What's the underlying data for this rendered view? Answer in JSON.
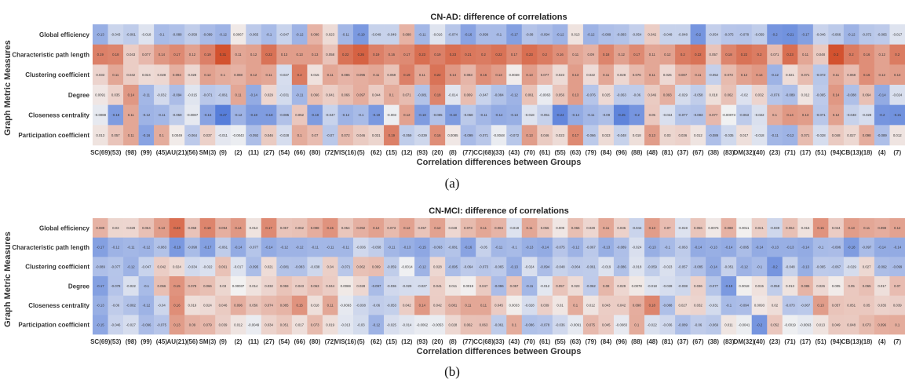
{
  "panels": [
    {
      "label": "(a)"
    },
    {
      "label": "(b)"
    }
  ],
  "chart_data": [
    {
      "type": "heatmap",
      "title": "CN-AD: difference of correlations",
      "xlabel": "Correlation differences between Groups",
      "ylabel": "Graph Metric Measures",
      "rows": [
        "Global efficiency",
        "Characteristic path length",
        "Clustering coefficient",
        "Degree",
        "Closeness centrality",
        "Participation coefficient"
      ],
      "columns": [
        "SC(69)",
        "(53)",
        "(98)",
        "(99)",
        "(45)",
        "AU(21)",
        "(56)",
        "SM(3)",
        "(9)",
        "(2)",
        "(11)",
        "(27)",
        "(54)",
        "(66)",
        "(80)",
        "(72)",
        "VIS(16)",
        "(5)",
        "(62)",
        "(15)",
        "(12)",
        "(93)",
        "(20)",
        "(8)",
        "(77)",
        "CC(68)",
        "(33)",
        "(43)",
        "(70)",
        "(61)",
        "(55)",
        "(63)",
        "(79)",
        "(84)",
        "(96)",
        "(88)",
        "(48)",
        "(81)",
        "(37)",
        "(67)",
        "(38)",
        "(83)",
        "DM(32)",
        "(40)",
        "(23)",
        "(71)",
        "(17)",
        "(51)",
        "(94)",
        "CB(13)",
        "(18)",
        "(4)",
        "(7)"
      ],
      "values": [
        [
          -0.13,
          -0.043,
          -0.061,
          -0.018,
          -0.1,
          -0.088,
          -0.058,
          -0.099,
          -0.12,
          0.0067,
          -0.065,
          -0.1,
          -0.047,
          -0.12,
          0.086,
          0.023,
          -0.11,
          -0.19,
          -0.049,
          -0.049,
          0.088,
          -0.11,
          -0.016,
          -0.074,
          -0.16,
          -0.099,
          -0.1,
          -0.17,
          -0.08,
          -0.094,
          -0.12,
          0.013,
          -0.12,
          -0.089,
          -0.083,
          -0.054,
          0.042,
          -0.048,
          -0.048,
          -0.2,
          -0.054,
          -0.075,
          -0.078,
          -0.059,
          -0.2,
          -0.21,
          -0.17,
          -0.046,
          -0.066,
          -0.12,
          -0.072,
          -0.065,
          -0.017
        ],
        [
          0.19,
          0.18,
          0.043,
          0.077,
          0.14,
          0.17,
          0.12,
          0.19,
          0.31,
          0.11,
          0.12,
          0.22,
          0.13,
          0.13,
          0.13,
          0.058,
          0.22,
          0.26,
          0.19,
          0.16,
          0.17,
          0.23,
          0.19,
          0.23,
          0.21,
          0.2,
          0.22,
          0.17,
          0.23,
          0.2,
          0.16,
          0.11,
          0.09,
          0.18,
          0.12,
          0.17,
          0.11,
          0.12,
          0.2,
          0.22,
          0.057,
          0.18,
          0.22,
          0.2,
          0.071,
          0.23,
          0.11,
          0.048,
          0.3,
          0.2,
          0.16,
          0.12,
          0.2
        ],
        [
          0.033,
          0.11,
          0.042,
          0.024,
          0.028,
          0.094,
          0.028,
          0.12,
          0.1,
          0.088,
          0.12,
          0.11,
          -0.027,
          0.2,
          0.015,
          0.11,
          0.086,
          0.096,
          0.11,
          0.059,
          0.19,
          0.11,
          0.22,
          0.14,
          0.083,
          0.16,
          0.13,
          0.0038,
          0.13,
          0.077,
          0.023,
          0.13,
          0.022,
          0.11,
          0.028,
          0.076,
          0.11,
          0.026,
          0.087,
          0.11,
          -0.052,
          0.073,
          0.12,
          0.14,
          -0.12,
          0.021,
          0.071,
          -0.072,
          0.11,
          0.068,
          0.16,
          0.12,
          0.13
        ],
        [
          0.0091,
          0.035,
          0.14,
          -0.11,
          -0.032,
          -0.094,
          -0.015,
          -0.071,
          -0.061,
          0.11,
          -0.14,
          0.029,
          -0.031,
          -0.11,
          0.066,
          0.041,
          0.066,
          0.097,
          0.044,
          0.1,
          0.071,
          -0.081,
          0.18,
          -0.014,
          0.069,
          -0.047,
          -0.084,
          -0.12,
          0.061,
          -0.0063,
          0.056,
          0.13,
          -0.076,
          0.025,
          -0.063,
          -0.06,
          0.046,
          0.093,
          -0.029,
          -0.058,
          0.018,
          0.062,
          -0.02,
          0.032,
          -0.076,
          -0.089,
          0.012,
          -0.065,
          0.14,
          -0.088,
          0.064,
          -0.14,
          -0.024
        ],
        [
          -0.0088,
          -0.18,
          0.11,
          -0.12,
          -0.11,
          -0.059,
          -0.0087,
          -0.16,
          -0.27,
          -0.12,
          -0.18,
          -0.18,
          -0.085,
          0.052,
          -0.18,
          -0.047,
          -0.12,
          -0.1,
          -0.19,
          -0.003,
          0.12,
          -0.18,
          -0.085,
          -0.18,
          -0.068,
          -0.11,
          -0.14,
          -0.13,
          -0.018,
          -0.051,
          -0.24,
          -0.14,
          -0.11,
          -0.09,
          -0.25,
          -0.2,
          0.05,
          -0.024,
          -0.077,
          -0.083,
          0.077,
          -0.00073,
          -0.063,
          -0.022,
          0.1,
          0.14,
          0.13,
          -0.071,
          0.12,
          -0.048,
          -0.028,
          -0.2,
          -0.21
        ],
        [
          0.013,
          0.057,
          0.11,
          -0.16,
          0.1,
          0.0049,
          -0.064,
          0.037,
          -0.011,
          -0.0043,
          -0.092,
          0.046,
          -0.028,
          0.1,
          0.07,
          -0.07,
          0.072,
          0.046,
          0.031,
          0.19,
          -0.059,
          -0.039,
          0.16,
          0.0085,
          -0.099,
          -0.071,
          -0.0048,
          -0.072,
          0.13,
          0.046,
          0.023,
          0.17,
          -0.066,
          0.023,
          -0.048,
          0.018,
          0.13,
          0.03,
          0.036,
          0.012,
          -0.089,
          -0.035,
          0.017,
          -0.018,
          -0.11,
          -0.12,
          0.071,
          -0.028,
          0.048,
          0.027,
          0.098,
          -0.089,
          0.012
        ]
      ],
      "color_low": "#4a74d8",
      "color_mid": "#f2f2f2",
      "color_high": "#d3522f",
      "vmin": -0.3,
      "vmax": 0.3
    },
    {
      "type": "heatmap",
      "title": "CN-MCI: difference of correlations",
      "xlabel": "Correlation differences between Groups",
      "ylabel": "Graph Metric Measures",
      "rows": [
        "Global efficiency",
        "Characteristic path length",
        "Clustering coefficient",
        "Degree",
        "Closeness centrality",
        "Participation coefficient"
      ],
      "columns": [
        "SC(69)",
        "(53)",
        "(98)",
        "(99)",
        "(45)",
        "AU(21)",
        "(56)",
        "SM(3)",
        "(9)",
        "(2)",
        "(11)",
        "(27)",
        "(54)",
        "(66)",
        "(80)",
        "(72)",
        "VIS(16)",
        "(5)",
        "(62)",
        "(15)",
        "(12)",
        "(93)",
        "(20)",
        "(8)",
        "(77)",
        "CC(68)",
        "(33)",
        "(43)",
        "(70)",
        "(61)",
        "(55)",
        "(63)",
        "(79)",
        "(84)",
        "(96)",
        "(88)",
        "(48)",
        "(81)",
        "(37)",
        "(67)",
        "(38)",
        "(83)",
        "DM(32)",
        "(40)",
        "(23)",
        "(71)",
        "(17)",
        "(51)",
        "(94)",
        "CB(13)",
        "(18)",
        "(4)",
        "(7)"
      ],
      "values": [
        [
          0.089,
          0.03,
          0.029,
          0.064,
          0.13,
          0.23,
          0.058,
          0.18,
          0.094,
          0.14,
          0.013,
          0.17,
          0.057,
          0.062,
          0.098,
          0.15,
          0.054,
          0.092,
          0.12,
          0.073,
          0.12,
          0.057,
          0.12,
          0.028,
          0.073,
          0.11,
          0.084,
          -0.019,
          0.11,
          0.056,
          0.009,
          0.066,
          0.029,
          0.11,
          0.036,
          -0.044,
          0.13,
          0.07,
          -0.019,
          0.056,
          0.0076,
          0.088,
          0.0011,
          0.041,
          -0.039,
          0.064,
          0.015,
          0.15,
          0.044,
          0.13,
          0.11,
          0.098,
          0.12
        ],
        [
          -0.17,
          -0.12,
          -0.11,
          -0.12,
          -0.083,
          -0.19,
          -0.098,
          -0.17,
          -0.061,
          -0.14,
          -0.077,
          -0.14,
          -0.12,
          -0.12,
          -0.11,
          -0.11,
          -0.11,
          -0.036,
          -0.058,
          -0.11,
          -0.13,
          -0.15,
          -0.093,
          -0.081,
          -0.16,
          -0.05,
          -0.11,
          -0.1,
          -0.13,
          -0.14,
          -0.075,
          -0.12,
          -0.067,
          -0.13,
          -0.089,
          -0.024,
          -0.13,
          -0.1,
          -0.063,
          -0.14,
          -0.13,
          -0.14,
          -0.095,
          -0.14,
          -0.13,
          -0.13,
          -0.14,
          -0.1,
          -0.096,
          -0.18,
          -0.097,
          -0.14,
          -0.14
        ],
        [
          -0.089,
          -0.077,
          -0.12,
          -0.047,
          0.042,
          0.024,
          -0.034,
          -0.022,
          0.061,
          -0.017,
          -0.095,
          0.021,
          -0.081,
          -0.083,
          -0.038,
          0.04,
          -0.071,
          0.062,
          0.069,
          -0.059,
          -0.0014,
          -0.12,
          0.028,
          -0.095,
          -0.064,
          -0.073,
          -0.065,
          -0.13,
          -0.024,
          -0.094,
          -0.048,
          -0.064,
          -0.061,
          -0.019,
          -0.086,
          -0.018,
          -0.059,
          -0.023,
          -0.057,
          -0.085,
          -0.14,
          -0.051,
          -0.12,
          -0.1,
          -0.2,
          -0.048,
          -0.13,
          -0.065,
          -0.067,
          -0.029,
          0.027,
          -0.092,
          -0.099
        ],
        [
          -0.17,
          -0.078,
          -0.022,
          -0.1,
          0.066,
          0.15,
          0.078,
          0.066,
          0.03,
          0.00037,
          0.014,
          0.032,
          0.059,
          0.043,
          0.063,
          0.044,
          0.0069,
          0.028,
          -0.097,
          -0.036,
          -0.029,
          -0.027,
          0.041,
          0.011,
          0.0019,
          0.047,
          -0.096,
          0.057,
          -0.11,
          -0.012,
          0.057,
          0.023,
          -0.062,
          0.08,
          0.029,
          0.0078,
          -0.018,
          -0.028,
          -0.038,
          0.036,
          -0.077,
          -0.19,
          0.0018,
          0.015,
          -0.058,
          0.013,
          0.085,
          0.026,
          0.005,
          0.05,
          0.065,
          0.017,
          0.07
        ],
        [
          -0.13,
          -0.06,
          -0.082,
          -0.12,
          -0.04,
          0.16,
          0.019,
          0.024,
          0.046,
          0.096,
          0.056,
          0.074,
          0.085,
          0.15,
          0.018,
          0.11,
          -0.0093,
          -0.038,
          -0.06,
          -0.053,
          0.042,
          0.14,
          0.042,
          0.081,
          0.11,
          0.11,
          0.045,
          0.0033,
          -0.028,
          0.039,
          0.01,
          0.1,
          0.012,
          0.043,
          0.042,
          0.098,
          0.18,
          -0.088,
          0.027,
          0.032,
          -0.031,
          -0.1,
          -0.094,
          0.0093,
          0.02,
          -0.073,
          -0.067,
          0.13,
          0.057,
          0.051,
          0.05,
          0.035,
          0.039
        ],
        [
          -0.15,
          -0.046,
          -0.027,
          -0.096,
          -0.075,
          0.13,
          0.09,
          0.079,
          0.039,
          0.012,
          -0.0049,
          0.034,
          0.051,
          0.017,
          0.073,
          0.019,
          -0.013,
          -0.03,
          -0.12,
          -0.025,
          -0.014,
          -0.0062,
          -0.0053,
          0.028,
          0.062,
          0.063,
          -0.061,
          0.1,
          -0.086,
          -0.078,
          -0.036,
          -0.0091,
          0.075,
          0.045,
          -0.0083,
          0.1,
          -0.022,
          -0.036,
          -0.089,
          -0.06,
          -0.069,
          0.011,
          -0.0041,
          -0.2,
          0.052,
          -0.0019,
          -0.0093,
          0.013,
          0.049,
          0.048,
          0.073,
          0.096,
          0.1
        ]
      ],
      "color_low": "#4a74d8",
      "color_mid": "#f2f2f2",
      "color_high": "#d3522f",
      "vmin": -0.3,
      "vmax": 0.3
    }
  ]
}
